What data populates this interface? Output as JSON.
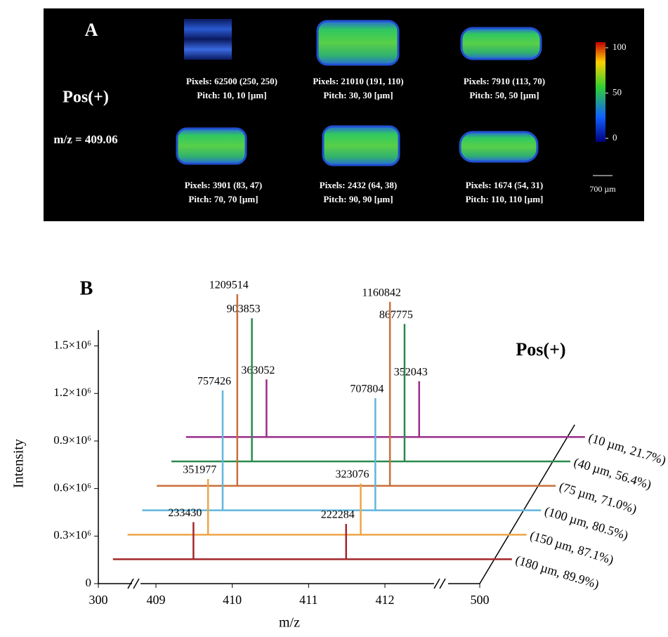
{
  "panel_a": {
    "label": "A",
    "mode": "Pos(+)",
    "mz": "m/z = 409.06",
    "images": [
      {
        "pixels": "Pixels: 62500 (250, 250)",
        "pitch": "Pitch: 10, 10 [µm]"
      },
      {
        "pixels": "Pixels: 21010 (191, 110)",
        "pitch": "Pitch: 30, 30 [µm]"
      },
      {
        "pixels": "Pixels: 7910 (113, 70)",
        "pitch": "Pitch: 50, 50 [µm]"
      },
      {
        "pixels": "Pixels: 3901 (83, 47)",
        "pitch": "Pitch: 70, 70 [µm]"
      },
      {
        "pixels": "Pixels: 2432 (64, 38)",
        "pitch": "Pitch: 90, 90 [µm]"
      },
      {
        "pixels": "Pixels: 1674 (54, 31)",
        "pitch": "Pitch: 110, 110 [µm]"
      }
    ],
    "colorbar": {
      "lim": [
        0,
        100
      ],
      "ticks": [
        0,
        50,
        100
      ]
    },
    "scale_bar": "700 µm"
  },
  "chart_data": {
    "type": "waterfall",
    "title": "B",
    "annotation": "Pos(+)",
    "x_label": "m/z",
    "y_label": "Intensity",
    "x": [
      409.3,
      411.3
    ],
    "xlim": [
      300,
      500
    ],
    "xticks": [
      300,
      409,
      410,
      411,
      412,
      500
    ],
    "ylim": [
      0,
      1600000
    ],
    "yticks": [
      0,
      {
        "value": 300000,
        "label": "0.3×10⁶"
      },
      {
        "value": 600000,
        "label": "0.6×10⁶"
      },
      {
        "value": 900000,
        "label": "0.9×10⁶"
      },
      {
        "value": 1200000,
        "label": "1.2×10⁶"
      },
      {
        "value": 1500000,
        "label": "1.5×10⁶"
      }
    ],
    "series": [
      {
        "name": "(10 µm, 21.7%)",
        "color": "#9b2d8c",
        "values": [
          363052,
          352043
        ]
      },
      {
        "name": "(40 µm, 56.4%)",
        "color": "#2a8a4c",
        "values": [
          903853,
          867775
        ]
      },
      {
        "name": "(75 µm, 71.0%)",
        "color": "#c8703a",
        "values": [
          1209514,
          1160842
        ]
      },
      {
        "name": "(100 µm, 80.5%)",
        "color": "#62b6dc",
        "values": [
          757426,
          707804
        ]
      },
      {
        "name": "(150 µm, 87.1%)",
        "color": "#eea448",
        "values": [
          351977,
          323076
        ]
      },
      {
        "name": "(180 µm, 89.9%)",
        "color": "#a3282c",
        "values": [
          233430,
          222284
        ]
      }
    ]
  }
}
